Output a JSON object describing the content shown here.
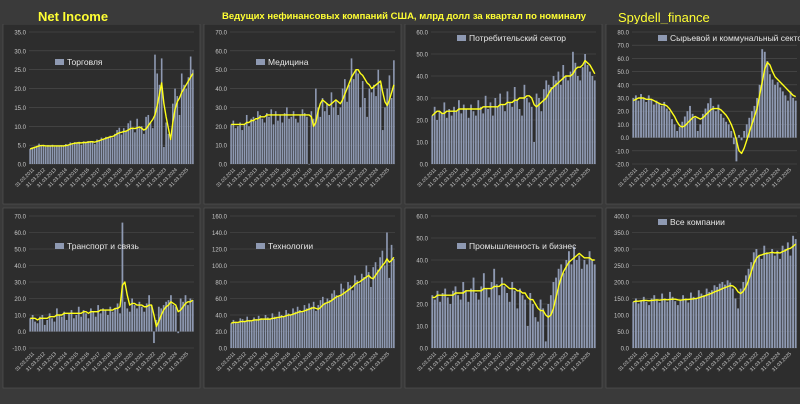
{
  "header": {
    "left": "Net Income",
    "center": "Ведущих нефинансовых компаний США, млрд долл за квартал по номиналу",
    "right": "Spydell_finance"
  },
  "colors": {
    "bar": "#8e99b2",
    "line": "#ffff1a",
    "grid": "#505050",
    "tick": "#c8c8c8",
    "legend_text": "#e6e6e6"
  },
  "chart_data": [
    {
      "type": "bar",
      "title": "Торговля",
      "ylim": [
        0,
        35
      ],
      "yticks": [
        0,
        5,
        10,
        15,
        20,
        25,
        30,
        35
      ],
      "x_labels": [
        "31.03.2011",
        "31.03.2012",
        "31.03.2013",
        "31.03.2014",
        "31.03.2015",
        "31.03.2016",
        "31.03.2017",
        "31.03.2018",
        "31.03.2019",
        "31.03.2020",
        "31.03.2021",
        "31.03.2022",
        "31.03.2023",
        "31.03.2024",
        "31.03.2025"
      ],
      "values": [
        4.0,
        4.4,
        4.6,
        4.8,
        5.4,
        5.0,
        5.1,
        4.6,
        5.0,
        4.8,
        5.1,
        4.6,
        4.8,
        4.9,
        5.0,
        4.7,
        5.3,
        5.0,
        5.7,
        5.2,
        5.8,
        5.6,
        5.9,
        5.1,
        6.0,
        5.8,
        6.1,
        5.7,
        6.0,
        5.3,
        6.5,
        6.3,
        7.0,
        6.5,
        7.2,
        6.9,
        7.5,
        7.0,
        8.0,
        9.0,
        9.6,
        7.8,
        9.5,
        8.8,
        10.8,
        11.5,
        9.4,
        8.4,
        12.0,
        9.5,
        10.0,
        8.0,
        12.5,
        13.0,
        11.0,
        9.5,
        29.0,
        24.0,
        21.0,
        28.0,
        4.5,
        11.0,
        8.0,
        6.5,
        16.0,
        20.0,
        18.0,
        13.0,
        24.0,
        21.0,
        20.0,
        23.0,
        28.5,
        25.0
      ],
      "line": [
        4.0,
        4.2,
        4.4,
        4.6,
        4.8,
        4.9,
        4.9,
        4.8,
        4.8,
        4.8,
        4.8,
        4.8,
        4.8,
        4.8,
        4.8,
        4.8,
        4.9,
        5.0,
        5.2,
        5.4,
        5.5,
        5.6,
        5.6,
        5.6,
        5.7,
        5.7,
        5.8,
        5.9,
        5.9,
        5.8,
        6.0,
        6.2,
        6.4,
        6.6,
        6.8,
        7.0,
        7.2,
        7.3,
        7.6,
        8.0,
        8.3,
        8.4,
        8.6,
        8.7,
        9.0,
        9.4,
        9.5,
        9.4,
        9.6,
        9.8,
        9.5,
        9.0,
        9.3,
        10.2,
        11.0,
        11.8,
        13.0,
        15.5,
        18.5,
        21.5,
        16.0,
        12.5,
        9.5,
        6.5,
        11.0,
        14.5,
        16.5,
        17.5,
        19.0,
        20.0,
        21.0,
        22.0,
        23.0,
        24.0
      ]
    },
    {
      "type": "bar",
      "title": "Медицина",
      "ylim": [
        0,
        70
      ],
      "yticks": [
        0,
        10,
        20,
        30,
        40,
        50,
        60,
        70
      ],
      "x_labels": [
        "31.03.2011",
        "31.03.2012",
        "31.03.2013",
        "31.03.2014",
        "31.03.2015",
        "31.03.2016",
        "31.03.2017",
        "31.03.2018",
        "31.03.2019",
        "31.03.2020",
        "31.03.2021",
        "31.03.2022",
        "31.03.2023",
        "31.03.2024",
        "31.03.2025"
      ],
      "values": [
        21,
        23,
        19,
        20,
        22,
        18,
        21,
        26,
        20,
        24,
        25,
        23,
        28,
        26,
        24,
        22,
        27,
        25,
        29,
        21,
        28,
        23,
        26,
        22,
        27,
        30,
        24,
        25,
        28,
        24,
        22,
        26,
        29,
        27,
        25,
        0,
        28,
        24,
        40,
        30,
        25,
        35,
        28,
        32,
        26,
        38,
        30,
        34,
        26,
        30,
        40,
        45,
        33,
        42,
        56,
        45,
        50,
        48,
        30,
        44,
        35,
        25,
        40,
        38,
        42,
        36,
        50,
        42,
        18,
        30,
        40,
        47,
        35,
        55
      ],
      "line": [
        21,
        21,
        21,
        21,
        21,
        21,
        21,
        22,
        22,
        23,
        23,
        24,
        24,
        25,
        25,
        25,
        26,
        26,
        26,
        26,
        26,
        26,
        26,
        26,
        26,
        26,
        26,
        26,
        26,
        26,
        26,
        26,
        26,
        26,
        26,
        26,
        25,
        20,
        22,
        28,
        32,
        34,
        33,
        32,
        31,
        32,
        33,
        34,
        33,
        32,
        34,
        37,
        40,
        43,
        46,
        48,
        50,
        50,
        48,
        47,
        45,
        43,
        42,
        40,
        41,
        42,
        43,
        44,
        38,
        33,
        31,
        34,
        38,
        42
      ]
    },
    {
      "type": "bar",
      "title": "Потребительский сектор",
      "ylim": [
        0,
        60
      ],
      "yticks": [
        0,
        10,
        20,
        30,
        40,
        50,
        60
      ],
      "x_labels": [
        "31.03.2011",
        "31.03.2012",
        "31.03.2013",
        "31.03.2014",
        "31.03.2015",
        "31.03.2016",
        "31.03.2017",
        "31.03.2018",
        "31.03.2019",
        "31.03.2020",
        "31.03.2021",
        "31.03.2022",
        "31.03.2023",
        "31.03.2024",
        "31.03.2025"
      ],
      "values": [
        22,
        26,
        20,
        24,
        23,
        28,
        21,
        25,
        22,
        26,
        24,
        29,
        23,
        27,
        25,
        21,
        27,
        24,
        22,
        29,
        26,
        23,
        31,
        25,
        28,
        22,
        30,
        26,
        32,
        27,
        24,
        33,
        28,
        26,
        35,
        29,
        25,
        22,
        36,
        30,
        28,
        26,
        10,
        32,
        30,
        24,
        34,
        38,
        36,
        35,
        40,
        38,
        42,
        36,
        45,
        40,
        38,
        42,
        51,
        46,
        40,
        38,
        44,
        50,
        45,
        42,
        40,
        38
      ],
      "line": [
        22,
        23,
        24,
        24,
        23,
        23,
        24,
        24,
        24,
        24,
        24,
        25,
        25,
        25,
        25,
        25,
        25,
        25,
        25,
        25,
        25,
        26,
        26,
        26,
        26,
        26,
        26,
        26,
        27,
        27,
        27,
        28,
        28,
        28,
        29,
        29,
        30,
        30,
        30,
        31,
        31,
        30,
        27,
        26,
        27,
        28,
        29,
        30,
        32,
        34,
        35,
        36,
        37,
        38,
        39,
        40,
        40,
        40,
        41,
        43,
        44,
        44,
        45,
        47,
        46,
        45,
        43,
        41
      ]
    },
    {
      "type": "bar",
      "title": "Сырьевой и коммунальный сектор",
      "ylim": [
        -20,
        80
      ],
      "yticks": [
        -20,
        -10,
        0,
        10,
        20,
        30,
        40,
        50,
        60,
        70,
        80
      ],
      "x_labels": [
        "31.03.2011",
        "31.03.2012",
        "31.03.2013",
        "31.03.2014",
        "31.03.2015",
        "31.03.2016",
        "31.03.2017",
        "31.03.2018",
        "31.03.2019",
        "31.03.2020",
        "31.03.2021",
        "31.03.2022",
        "31.03.2023",
        "31.03.2024",
        "31.03.2025"
      ],
      "values": [
        30,
        32,
        28,
        33,
        30,
        27,
        32,
        29,
        25,
        28,
        26,
        24,
        27,
        22,
        20,
        14,
        10,
        5,
        8,
        12,
        16,
        20,
        24,
        18,
        15,
        5,
        10,
        18,
        22,
        26,
        30,
        24,
        20,
        25,
        18,
        15,
        12,
        10,
        5,
        -5,
        -18,
        2,
        -2,
        5,
        10,
        15,
        20,
        24,
        30,
        40,
        67,
        65,
        58,
        48,
        44,
        40,
        42,
        38,
        35,
        32,
        28,
        35,
        30,
        28
      ],
      "line": [
        28,
        29,
        30,
        30,
        30,
        29,
        29,
        29,
        28,
        27,
        26,
        25,
        25,
        24,
        22,
        19,
        16,
        12,
        9,
        8,
        9,
        11,
        13,
        15,
        16,
        15,
        14,
        15,
        17,
        19,
        21,
        22,
        22,
        22,
        21,
        19,
        17,
        14,
        10,
        5,
        -2,
        -10,
        -12,
        -8,
        -2,
        4,
        10,
        16,
        22,
        32,
        42,
        52,
        57,
        55,
        50,
        46,
        44,
        42,
        40,
        38,
        36,
        34,
        32,
        31
      ]
    },
    {
      "type": "bar",
      "title": "Транспорт и связь",
      "ylim": [
        -10,
        70
      ],
      "yticks": [
        -10,
        0,
        10,
        20,
        30,
        40,
        50,
        60,
        70
      ],
      "x_labels": [
        "31.03.2011",
        "31.03.2012",
        "31.03.2013",
        "31.03.2014",
        "31.03.2015",
        "31.03.2016",
        "31.03.2017",
        "31.03.2018",
        "31.03.2019",
        "31.03.2020",
        "31.03.2021",
        "31.03.2022",
        "31.03.2023",
        "31.03.2024",
        "31.03.2025"
      ],
      "values": [
        8,
        10,
        6,
        5,
        9,
        10,
        4,
        7,
        11,
        8,
        6,
        14,
        10,
        9,
        12,
        7,
        11,
        13,
        8,
        10,
        15,
        9,
        13,
        11,
        8,
        14,
        12,
        9,
        16,
        11,
        14,
        13,
        10,
        15,
        12,
        14,
        17,
        11,
        66,
        18,
        14,
        12,
        20,
        16,
        14,
        18,
        15,
        12,
        17,
        22,
        16,
        -7,
        7,
        15,
        14,
        16,
        18,
        19,
        22,
        16,
        15,
        -1,
        20,
        18,
        22,
        16,
        20,
        19
      ],
      "line": [
        8,
        8,
        8,
        7,
        8,
        8,
        8,
        8,
        9,
        9,
        9,
        10,
        10,
        10,
        11,
        11,
        11,
        11,
        11,
        11,
        11,
        11,
        12,
        12,
        11,
        12,
        12,
        12,
        12,
        13,
        13,
        13,
        13,
        13,
        13,
        14,
        14,
        15,
        28,
        30,
        22,
        16,
        17,
        17,
        16,
        16,
        16,
        15,
        15,
        16,
        16,
        10,
        3,
        6,
        10,
        13,
        15,
        16,
        18,
        17,
        16,
        12,
        13,
        15,
        17,
        18,
        18,
        19
      ]
    },
    {
      "type": "bar",
      "title": "Технологии",
      "ylim": [
        0,
        160
      ],
      "yticks": [
        0,
        20,
        40,
        60,
        80,
        100,
        120,
        140,
        160
      ],
      "x_labels": [
        "31.03.2011",
        "31.03.2012",
        "31.03.2013",
        "31.03.2014",
        "31.03.2015",
        "31.03.2016",
        "31.03.2017",
        "31.03.2018",
        "31.03.2019",
        "31.03.2020",
        "31.03.2021",
        "31.03.2022",
        "31.03.2023",
        "31.03.2024",
        "31.03.2025"
      ],
      "values": [
        30,
        34,
        32,
        30,
        36,
        35,
        33,
        38,
        34,
        32,
        37,
        35,
        39,
        36,
        34,
        40,
        37,
        35,
        42,
        38,
        36,
        44,
        40,
        38,
        46,
        42,
        40,
        48,
        44,
        50,
        46,
        43,
        52,
        48,
        54,
        50,
        56,
        45,
        52,
        58,
        62,
        55,
        60,
        58,
        66,
        70,
        64,
        62,
        78,
        72,
        68,
        80,
        76,
        70,
        88,
        82,
        78,
        90,
        86,
        100,
        92,
        74,
        98,
        104,
        95,
        110,
        118,
        100,
        140,
        85,
        125,
        108
      ],
      "line": [
        30,
        31,
        31,
        31,
        32,
        32,
        32,
        33,
        33,
        33,
        34,
        34,
        34,
        35,
        35,
        35,
        35,
        35,
        36,
        36,
        37,
        37,
        38,
        38,
        39,
        40,
        40,
        41,
        42,
        43,
        44,
        44,
        45,
        46,
        47,
        48,
        49,
        48,
        47,
        49,
        52,
        54,
        55,
        56,
        58,
        60,
        62,
        63,
        64,
        66,
        68,
        70,
        72,
        74,
        77,
        79,
        80,
        82,
        84,
        86,
        88,
        85,
        84,
        88,
        92,
        96,
        100,
        103,
        108,
        104,
        106,
        110
      ]
    },
    {
      "type": "bar",
      "title": "Промышленность и бизнес",
      "ylim": [
        0,
        60
      ],
      "yticks": [
        0,
        10,
        20,
        30,
        40,
        50,
        60
      ],
      "x_labels": [
        "31.03.2011",
        "31.03.2012",
        "31.03.2013",
        "31.03.2014",
        "31.03.2015",
        "31.03.2016",
        "31.03.2017",
        "31.03.2018",
        "31.03.2019",
        "31.03.2020",
        "31.03.2021",
        "31.03.2022",
        "31.03.2023",
        "31.03.2024",
        "31.03.2025"
      ],
      "values": [
        24,
        22,
        26,
        21,
        25,
        27,
        23,
        20,
        26,
        28,
        24,
        22,
        30,
        26,
        21,
        27,
        32,
        25,
        22,
        28,
        34,
        27,
        23,
        30,
        36,
        29,
        24,
        32,
        28,
        25,
        21,
        30,
        26,
        18,
        27,
        24,
        22,
        10,
        25,
        20,
        14,
        12,
        22,
        18,
        3,
        20,
        24,
        30,
        32,
        36,
        38,
        34,
        40,
        44,
        38,
        46,
        40,
        42,
        36,
        40,
        38,
        44,
        40,
        38
      ],
      "line": [
        23,
        23,
        24,
        24,
        24,
        24,
        24,
        24,
        24,
        25,
        25,
        25,
        25,
        26,
        26,
        26,
        26,
        26,
        26,
        26,
        27,
        27,
        27,
        27,
        28,
        28,
        28,
        29,
        29,
        28,
        27,
        27,
        27,
        26,
        26,
        25,
        25,
        23,
        22,
        22,
        20,
        18,
        17,
        17,
        15,
        14,
        15,
        18,
        23,
        28,
        32,
        35,
        37,
        39,
        40,
        41,
        42,
        43,
        42,
        41,
        41,
        41,
        40,
        40
      ]
    },
    {
      "type": "bar",
      "title": "Все компании",
      "ylim": [
        0,
        400
      ],
      "yticks": [
        0,
        50,
        100,
        150,
        200,
        250,
        300,
        350,
        400
      ],
      "x_labels": [
        "31.03.2011",
        "31.03.2012",
        "31.03.2013",
        "31.03.2014",
        "31.03.2015",
        "31.03.2016",
        "31.03.2017",
        "31.03.2018",
        "31.03.2019",
        "31.03.2020",
        "31.03.2021",
        "31.03.2022",
        "31.03.2023",
        "31.03.2024",
        "31.03.2025"
      ],
      "values": [
        140,
        150,
        135,
        145,
        155,
        140,
        130,
        150,
        160,
        145,
        138,
        165,
        150,
        140,
        170,
        155,
        142,
        130,
        145,
        160,
        150,
        138,
        168,
        155,
        150,
        175,
        165,
        160,
        180,
        170,
        175,
        190,
        185,
        195,
        200,
        192,
        205,
        198,
        180,
        150,
        120,
        180,
        200,
        220,
        240,
        260,
        290,
        300,
        280,
        270,
        310,
        290,
        285,
        300,
        280,
        295,
        270,
        310,
        300,
        320,
        280,
        340,
        330
      ],
      "line": [
        140,
        142,
        142,
        143,
        144,
        144,
        143,
        144,
        145,
        146,
        145,
        146,
        147,
        146,
        147,
        148,
        148,
        146,
        145,
        146,
        147,
        147,
        148,
        149,
        150,
        152,
        155,
        157,
        160,
        163,
        166,
        170,
        173,
        176,
        180,
        183,
        186,
        189,
        188,
        182,
        170,
        165,
        172,
        185,
        205,
        230,
        255,
        272,
        280,
        282,
        285,
        287,
        288,
        290,
        288,
        289,
        288,
        292,
        295,
        300,
        302,
        308,
        315
      ]
    }
  ]
}
